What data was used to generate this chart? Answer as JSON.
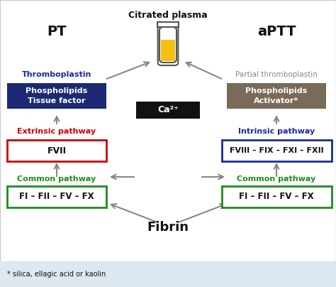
{
  "title": "Citrated plasma",
  "pt_label": "PT",
  "aptt_label": "aPTT",
  "thromboplastin_label": "Thromboplastin",
  "partial_thromboplastin_label": "Partial thromboplastin",
  "box1_text": "Phospholipids\nTissue factor",
  "box2_text": "Phospholipids\nActivator*",
  "ca2_text": "Ca²⁺",
  "extrinsic_label": "Extrinsic pathway",
  "intrinsic_label": "Intrinsic pathway",
  "fvii_text": "FVII",
  "fviii_text": "FVIII – FIX – FXI – FXII",
  "common1_label": "Common pathway",
  "common2_label": "Common pathway",
  "common1_text": "FI – FII – FV – FX",
  "common2_text": "FI – FII – FV – FX",
  "fibrin_text": "Fibrin",
  "footnote": "* silica, ellagic acid or kaolin",
  "bg_color": "#ffffff",
  "footer_bg": "#dde8f0",
  "dark_blue_box": "#1b2a72",
  "gray_box": "#7a6a58",
  "black_box": "#111111",
  "red_box_border": "#cc0000",
  "blue_box_border": "#1a2a9c",
  "green_box_border": "#1e8b1e",
  "blue_text": "#1a2a9c",
  "red_text": "#cc0000",
  "green_text": "#1e8b1e",
  "gray_text": "#888888",
  "black_text": "#111111",
  "white_text": "#ffffff",
  "arrow_color": "#888888"
}
